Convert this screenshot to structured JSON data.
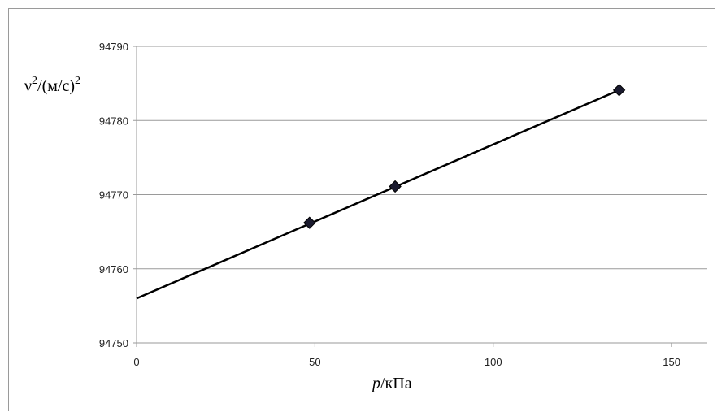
{
  "chart_data": {
    "type": "scatter",
    "title": "",
    "xlabel_var": "p",
    "xlabel_unit": "/кПа",
    "ylabel": "ν²/(м/с)²",
    "ylabel_parts": {
      "base": "ν",
      "sup1": "2",
      "mid": "/(м/с)",
      "sup2": "2"
    },
    "xlim": [
      0,
      160
    ],
    "ylim": [
      94750,
      94790
    ],
    "xticks": [
      0,
      50,
      100,
      150
    ],
    "yticks": [
      94750,
      94760,
      94770,
      94780,
      94790
    ],
    "grid": "horizontal",
    "legend": "none",
    "series": [
      {
        "marker": "diamond",
        "color": "#1a1a2e",
        "points": [
          {
            "x": 48.5,
            "y": 94766.2
          },
          {
            "x": 72.5,
            "y": 94771.1
          },
          {
            "x": 135.3,
            "y": 94784.1
          }
        ]
      }
    ],
    "trendline": {
      "type": "linear",
      "x": [
        0,
        135.3
      ],
      "y": [
        94756.0,
        94784.1
      ],
      "color": "#000000"
    }
  }
}
